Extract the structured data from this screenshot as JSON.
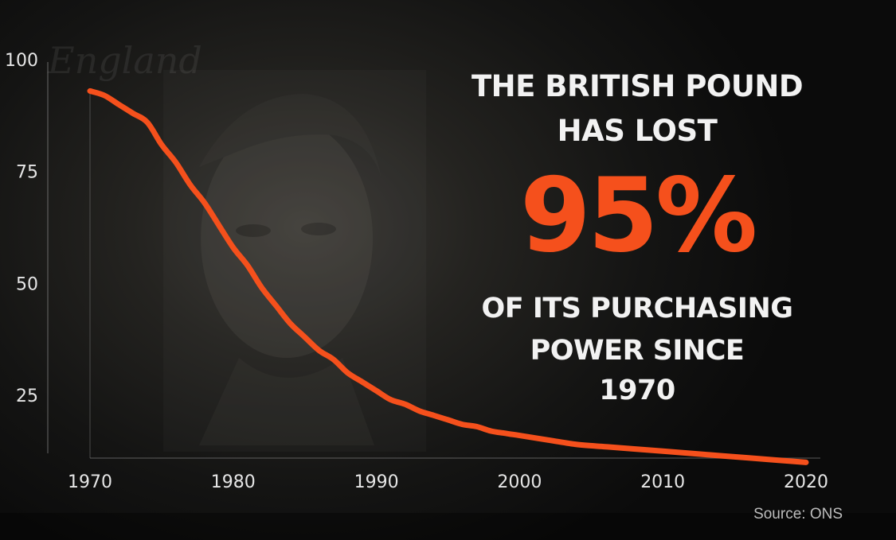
{
  "headline": {
    "line1": "THE BRITISH POUND",
    "line2": "HAS LOST",
    "percent": "95%",
    "line3": "OF ITS PURCHASING",
    "line4": "POWER SINCE",
    "line5": "1970"
  },
  "source": "Source: ONS",
  "colors": {
    "accent": "#f5501c",
    "text": "#f2f2f2",
    "background": "#141413"
  },
  "chart_data": {
    "type": "line",
    "title": "",
    "xlabel": "",
    "ylabel": "",
    "xlim": [
      1970,
      2020
    ],
    "ylim": [
      5,
      100
    ],
    "x_ticks": [
      1970,
      1980,
      1990,
      2000,
      2010,
      2020
    ],
    "y_ticks": [
      25,
      50,
      75,
      100
    ],
    "grid": false,
    "legend": "none",
    "series": [
      {
        "color": "#f5501c",
        "x": [
          1970,
          1971,
          1972,
          1973,
          1974,
          1975,
          1976,
          1977,
          1978,
          1979,
          1980,
          1981,
          1982,
          1983,
          1984,
          1985,
          1986,
          1987,
          1988,
          1989,
          1990,
          1991,
          1992,
          1993,
          1994,
          1995,
          1996,
          1997,
          1998,
          1999,
          2000,
          2002,
          2004,
          2006,
          2008,
          2010,
          2012,
          2014,
          2016,
          2018,
          2020
        ],
        "y": [
          93,
          92,
          90,
          88,
          86,
          81,
          77,
          72,
          68,
          63,
          58,
          54,
          49,
          45,
          41,
          38,
          35,
          33,
          30,
          28,
          26,
          24,
          23,
          21.5,
          20.5,
          19.5,
          18.5,
          18,
          17,
          16.5,
          16,
          15,
          14,
          13.5,
          13,
          12.5,
          12,
          11.5,
          11,
          10.5,
          10
        ]
      }
    ]
  }
}
